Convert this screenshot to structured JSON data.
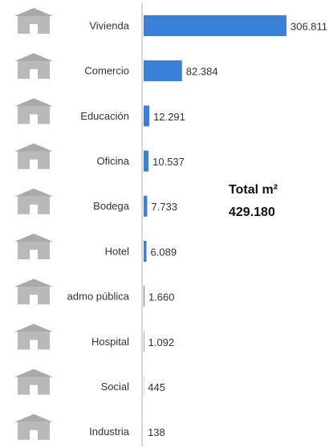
{
  "chart_data": {
    "type": "barh",
    "categories": [
      "Vivienda",
      "Comercio",
      "Educación",
      "Oficina",
      "Bodega",
      "Hotel",
      "admo pública",
      "Hospital",
      "Social",
      "Industria"
    ],
    "values": [
      306811,
      82384,
      12291,
      10537,
      7733,
      6089,
      1660,
      1092,
      445,
      138
    ],
    "value_labels": [
      "306.811",
      "82.384",
      "12.291",
      "10.537",
      "7.733",
      "6.089",
      "1.660",
      "1.092",
      "445",
      "138"
    ],
    "color": "#3b80d8",
    "xlim": [
      0,
      306811
    ],
    "annotation": {
      "title": "Total m²",
      "value": "429.180"
    }
  }
}
